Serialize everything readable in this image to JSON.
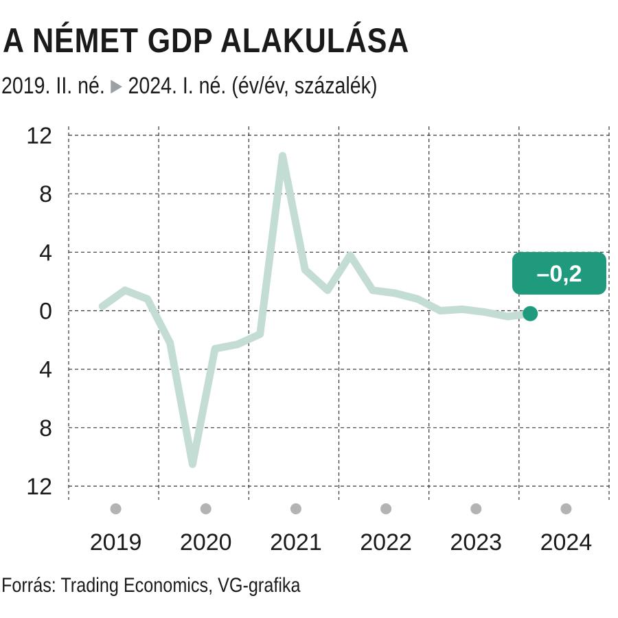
{
  "title": "A NÉMET GDP ALAKULÁSA",
  "subtitle": {
    "from": "2019.  II. né.",
    "arrow": "▶",
    "to": "2024. I. né. (év/év, százalék)"
  },
  "source": "Forrás: Trading Economics, VG-grafika",
  "colors": {
    "line": "#c3ddd4",
    "accent": "#1f9a7c",
    "grid": "#333333",
    "year_dot": "#b3b3b3"
  },
  "chart_data": {
    "type": "line",
    "title": "A NÉMET GDP ALAKULÁSA",
    "ylim": [
      -12,
      12
    ],
    "y_ticks": [
      12,
      8,
      4,
      0,
      -4,
      -8,
      -12
    ],
    "y_tick_labels": [
      "12",
      "8",
      "4",
      "0",
      "4",
      "8",
      "12"
    ],
    "x_tick_labels": [
      "2019",
      "2020",
      "2021",
      "2022",
      "2023",
      "2024"
    ],
    "grid": true,
    "series": [
      {
        "x": [
          "2019 II",
          "2019 III",
          "2019 IV",
          "2020 I",
          "2020 II",
          "2020 III",
          "2020 IV",
          "2021 I",
          "2021 II",
          "2021 III",
          "2021 IV",
          "2022 I",
          "2022 II",
          "2022 III",
          "2022 IV",
          "2023 I",
          "2023 II",
          "2023 III",
          "2023 IV",
          "2024 I"
        ],
        "values": [
          0.3,
          1.4,
          0.8,
          -2.2,
          -10.5,
          -2.6,
          -2.3,
          -1.6,
          10.6,
          2.8,
          1.4,
          3.8,
          1.4,
          1.2,
          0.8,
          0.0,
          0.1,
          -0.1,
          -0.4,
          -0.2
        ]
      }
    ],
    "callout": {
      "label": "–0,2",
      "value": -0.2
    }
  }
}
